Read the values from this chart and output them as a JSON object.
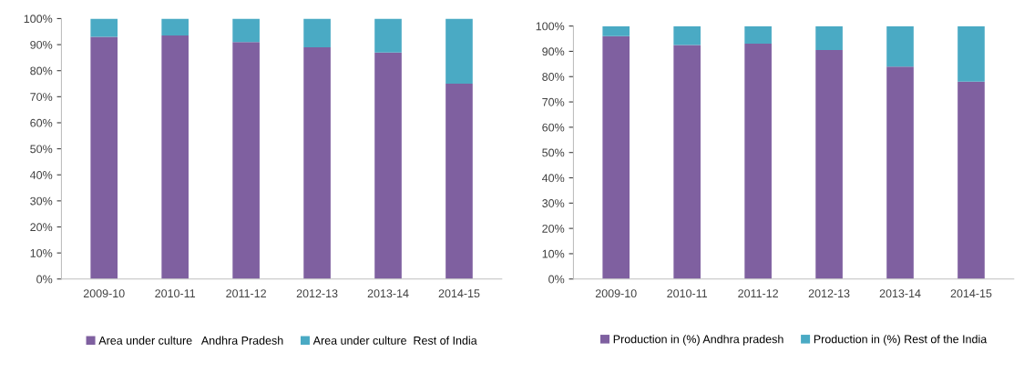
{
  "chart_data": [
    {
      "type": "bar",
      "stacked": true,
      "categories": [
        "2009-10",
        "2010-11",
        "2011-12",
        "2012-13",
        "2013-14",
        "2014-15"
      ],
      "series": [
        {
          "name": "Area under culture   Andhra Pradesh",
          "color": "#7f60a0",
          "values": [
            93,
            93.5,
            91,
            89,
            87,
            75
          ]
        },
        {
          "name": "Area under culture  Rest of India",
          "color": "#4aaac4",
          "values": [
            7,
            6.5,
            9,
            11,
            13,
            25
          ]
        }
      ],
      "ylim": [
        0,
        100
      ],
      "yticks": [
        {
          "value": 0,
          "label": "0%"
        },
        {
          "value": 10,
          "label": "10%"
        },
        {
          "value": 20,
          "label": "20%"
        },
        {
          "value": 30,
          "label": "30%"
        },
        {
          "value": 40,
          "label": "40%"
        },
        {
          "value": 50,
          "label": "50%"
        },
        {
          "value": 60,
          "label": "60%"
        },
        {
          "value": 70,
          "label": "70%"
        },
        {
          "value": 80,
          "label": "80%"
        },
        {
          "value": 90,
          "label": "90%"
        },
        {
          "value": 100,
          "label": "100%"
        }
      ],
      "grid": false,
      "legend": "bottom"
    },
    {
      "type": "bar",
      "stacked": true,
      "categories": [
        "2009-10",
        "2010-11",
        "2011-12",
        "2012-13",
        "2013-14",
        "2014-15"
      ],
      "series": [
        {
          "name": "Production in (%) Andhra pradesh",
          "color": "#7f60a0",
          "values": [
            96,
            92.5,
            93,
            90.5,
            84,
            78
          ]
        },
        {
          "name": "Production in (%) Rest of the India",
          "color": "#4aaac4",
          "values": [
            4,
            7.5,
            7,
            9.5,
            16,
            22
          ]
        }
      ],
      "ylim": [
        0,
        100
      ],
      "yticks": [
        {
          "value": 0,
          "label": "0%"
        },
        {
          "value": 10,
          "label": "10%"
        },
        {
          "value": 20,
          "label": "20%"
        },
        {
          "value": 30,
          "label": "30%"
        },
        {
          "value": 40,
          "label": "40%"
        },
        {
          "value": 50,
          "label": "50%"
        },
        {
          "value": 60,
          "label": "60%"
        },
        {
          "value": 70,
          "label": "70%"
        },
        {
          "value": 80,
          "label": "80%"
        },
        {
          "value": 90,
          "label": "90%"
        },
        {
          "value": 100,
          "label": "100%"
        }
      ],
      "grid": false,
      "legend": "bottom"
    }
  ]
}
